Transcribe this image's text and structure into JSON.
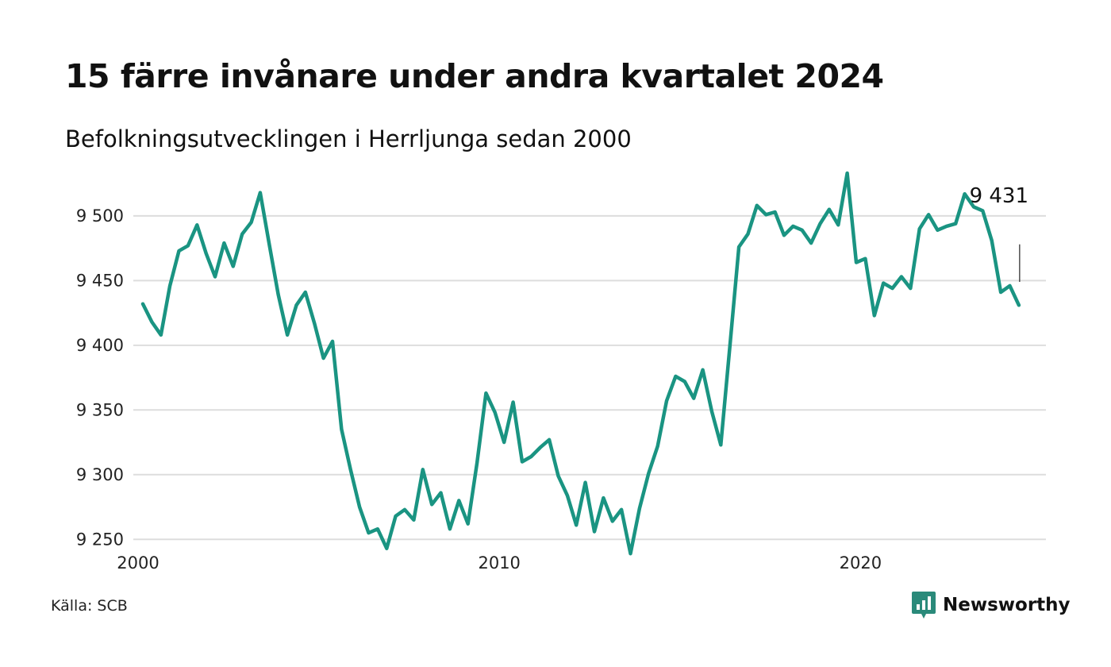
{
  "header": {
    "title": "15 färre invånare under andra kvartalet 2024",
    "subtitle": "Befolkningsutvecklingen i Herrljunga sedan 2000"
  },
  "footer": {
    "source": "Källa: SCB",
    "brand": "Newsworthy"
  },
  "colors": {
    "line": "#1a9482",
    "brand": "#2a8a7a",
    "grid": "#dddddd"
  },
  "chart_data": {
    "type": "line",
    "title": "15 färre invånare under andra kvartalet 2024",
    "subtitle": "Befolkningsutvecklingen i Herrljunga sedan 2000",
    "xlabel": "",
    "ylabel": "",
    "x_start": 2000.0,
    "x_step": 0.25,
    "xlim": [
      2000.0,
      2025.0
    ],
    "ylim": [
      9225,
      9530
    ],
    "x_ticks": [
      2000,
      2010,
      2020
    ],
    "x_tick_labels": [
      "2000",
      "2010",
      "2020"
    ],
    "y_ticks": [
      9250,
      9300,
      9350,
      9400,
      9450,
      9500
    ],
    "y_tick_labels": [
      "9 250",
      "9 300",
      "9 350",
      "9 400",
      "9 450",
      "9 500"
    ],
    "grid": true,
    "end_label": "9 431",
    "series": [
      {
        "values": [
          9432,
          9418,
          9408,
          9446,
          9473,
          9477,
          9493,
          9471,
          9453,
          9479,
          9461,
          9486,
          9495,
          9518,
          9478,
          9439,
          9408,
          9431,
          9441,
          9417,
          9390,
          9403,
          9335,
          9304,
          9275,
          9255,
          9258,
          9243,
          9268,
          9273,
          9265,
          9304,
          9277,
          9286,
          9258,
          9280,
          9262,
          9309,
          9363,
          9348,
          9325,
          9356,
          9310,
          9314,
          9321,
          9327,
          9299,
          9284,
          9261,
          9294,
          9256,
          9282,
          9264,
          9273,
          9239,
          9274,
          9301,
          9322,
          9357,
          9376,
          9372,
          9359,
          9381,
          9349,
          9323,
          9399,
          9476,
          9486,
          9508,
          9501,
          9503,
          9485,
          9492,
          9489,
          9479,
          9494,
          9505,
          9493,
          9533,
          9464,
          9467,
          9423,
          9448,
          9444,
          9453,
          9444,
          9490,
          9501,
          9489,
          9492,
          9494,
          9517,
          9507,
          9504,
          9481,
          9441,
          9446,
          9431
        ]
      }
    ]
  }
}
